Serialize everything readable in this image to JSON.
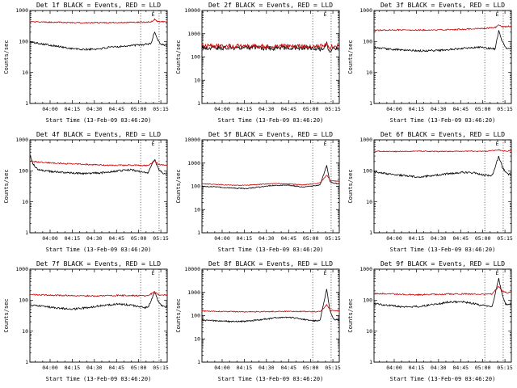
{
  "figure": {
    "xlabel": "Start Time (13-Feb-09 03:46:20)",
    "ylabel": "Counts/sec",
    "xrange_minutes": [
      0,
      93
    ],
    "xticks": [
      {
        "t": 13.67,
        "label": "04:00"
      },
      {
        "t": 28.67,
        "label": "04:15"
      },
      {
        "t": 43.67,
        "label": "04:30"
      },
      {
        "t": 58.67,
        "label": "04:45"
      },
      {
        "t": 73.67,
        "label": "05:00"
      },
      {
        "t": 88.67,
        "label": "05:15"
      }
    ],
    "event_marker": {
      "label": "E",
      "t": 83.5,
      "lines_t": [
        75.0,
        87.5
      ]
    },
    "legend": {
      "black_series": "Events",
      "red_series": "LLD"
    },
    "colors": {
      "events": "#000000",
      "lld": "#cc0000"
    }
  },
  "chart_data": [
    {
      "type": "line",
      "title": "Det 1f BLACK = Events, RED = LLD",
      "ylog": true,
      "ylim": [
        1,
        1000
      ],
      "series": [
        {
          "name": "Events",
          "color": "#000000",
          "noise": 0.07,
          "seed": 101,
          "points": [
            [
              0,
              95
            ],
            [
              8,
              85
            ],
            [
              15,
              75
            ],
            [
              25,
              62
            ],
            [
              35,
              55
            ],
            [
              45,
              57
            ],
            [
              55,
              65
            ],
            [
              65,
              72
            ],
            [
              75,
              78
            ],
            [
              82,
              85
            ],
            [
              84.5,
              210
            ],
            [
              86.5,
              115
            ],
            [
              89,
              80
            ],
            [
              93,
              75
            ]
          ]
        },
        {
          "name": "LLD",
          "color": "#cc0000",
          "noise": 0.045,
          "seed": 102,
          "points": [
            [
              0,
              430
            ],
            [
              20,
              415
            ],
            [
              40,
              400
            ],
            [
              60,
              410
            ],
            [
              75,
              420
            ],
            [
              82,
              430
            ],
            [
              84.5,
              520
            ],
            [
              86.5,
              440
            ],
            [
              93,
              430
            ]
          ]
        }
      ]
    },
    {
      "type": "line",
      "title": "Det 2f BLACK = Events, RED = LLD",
      "ylog": true,
      "ylim": [
        1,
        10000
      ],
      "series": [
        {
          "name": "Events",
          "color": "#000000",
          "noise": 0.22,
          "seed": 103,
          "points": [
            [
              0,
              255
            ],
            [
              15,
              245
            ],
            [
              30,
              255
            ],
            [
              45,
              235
            ],
            [
              60,
              255
            ],
            [
              70,
              245
            ],
            [
              78,
              230
            ],
            [
              82,
              220
            ],
            [
              84.5,
              390
            ],
            [
              86.5,
              140
            ],
            [
              89,
              250
            ],
            [
              93,
              235
            ]
          ]
        },
        {
          "name": "LLD",
          "color": "#cc0000",
          "noise": 0.2,
          "seed": 104,
          "points": [
            [
              0,
              300
            ],
            [
              15,
              290
            ],
            [
              30,
              300
            ],
            [
              45,
              285
            ],
            [
              60,
              300
            ],
            [
              70,
              290
            ],
            [
              78,
              285
            ],
            [
              84.5,
              330
            ],
            [
              86.5,
              240
            ],
            [
              89,
              300
            ],
            [
              93,
              290
            ]
          ]
        }
      ]
    },
    {
      "type": "line",
      "title": "Det 3f BLACK = Events, RED = LLD",
      "ylog": true,
      "ylim": [
        1,
        1000
      ],
      "series": [
        {
          "name": "Events",
          "color": "#000000",
          "noise": 0.07,
          "seed": 105,
          "points": [
            [
              0,
              62
            ],
            [
              15,
              55
            ],
            [
              30,
              50
            ],
            [
              45,
              52
            ],
            [
              60,
              60
            ],
            [
              70,
              66
            ],
            [
              78,
              60
            ],
            [
              82,
              58
            ],
            [
              84.5,
              230
            ],
            [
              86.5,
              105
            ],
            [
              89,
              63
            ],
            [
              93,
              60
            ]
          ]
        },
        {
          "name": "LLD",
          "color": "#cc0000",
          "noise": 0.05,
          "seed": 106,
          "points": [
            [
              0,
              230
            ],
            [
              20,
              238
            ],
            [
              40,
              232
            ],
            [
              60,
              248
            ],
            [
              75,
              265
            ],
            [
              82,
              285
            ],
            [
              84.5,
              330
            ],
            [
              87,
              300
            ],
            [
              93,
              310
            ]
          ]
        }
      ]
    },
    {
      "type": "line",
      "title": "Det 4f BLACK = Events, RED = LLD",
      "ylog": true,
      "ylim": [
        1,
        1000
      ],
      "series": [
        {
          "name": "Events",
          "color": "#000000",
          "noise": 0.07,
          "seed": 107,
          "points": [
            [
              0,
              330
            ],
            [
              2,
              170
            ],
            [
              5,
              115
            ],
            [
              10,
              100
            ],
            [
              20,
              90
            ],
            [
              30,
              84
            ],
            [
              40,
              82
            ],
            [
              50,
              88
            ],
            [
              60,
              100
            ],
            [
              68,
              108
            ],
            [
              75,
              95
            ],
            [
              80,
              87
            ],
            [
              84.5,
              235
            ],
            [
              87,
              115
            ],
            [
              90,
              84
            ],
            [
              93,
              80
            ]
          ]
        },
        {
          "name": "LLD",
          "color": "#cc0000",
          "noise": 0.05,
          "seed": 108,
          "points": [
            [
              0,
              205
            ],
            [
              10,
              185
            ],
            [
              25,
              170
            ],
            [
              40,
              160
            ],
            [
              55,
              150
            ],
            [
              70,
              153
            ],
            [
              80,
              148
            ],
            [
              84.5,
              215
            ],
            [
              87,
              160
            ],
            [
              93,
              155
            ]
          ]
        }
      ]
    },
    {
      "type": "line",
      "title": "Det 5f BLACK = Events, RED = LLD",
      "ylog": true,
      "ylim": [
        1,
        10000
      ],
      "series": [
        {
          "name": "Events",
          "color": "#000000",
          "noise": 0.05,
          "seed": 109,
          "points": [
            [
              0,
              100
            ],
            [
              10,
              94
            ],
            [
              20,
              85
            ],
            [
              30,
              80
            ],
            [
              40,
              95
            ],
            [
              50,
              112
            ],
            [
              60,
              110
            ],
            [
              68,
              94
            ],
            [
              75,
              104
            ],
            [
              80,
              115
            ],
            [
              84.5,
              800
            ],
            [
              86.5,
              170
            ],
            [
              89,
              135
            ],
            [
              93,
              128
            ]
          ]
        },
        {
          "name": "LLD",
          "color": "#cc0000",
          "noise": 0.04,
          "seed": 110,
          "points": [
            [
              0,
              128
            ],
            [
              10,
              120
            ],
            [
              20,
              113
            ],
            [
              30,
              110
            ],
            [
              40,
              122
            ],
            [
              50,
              132
            ],
            [
              60,
              126
            ],
            [
              68,
              114
            ],
            [
              75,
              128
            ],
            [
              80,
              140
            ],
            [
              84.5,
              300
            ],
            [
              87,
              175
            ],
            [
              93,
              165
            ]
          ]
        }
      ]
    },
    {
      "type": "line",
      "title": "Det 6f BLACK = Events, RED = LLD",
      "ylog": true,
      "ylim": [
        1,
        1000
      ],
      "series": [
        {
          "name": "Events",
          "color": "#000000",
          "noise": 0.07,
          "seed": 111,
          "points": [
            [
              0,
              92
            ],
            [
              10,
              80
            ],
            [
              20,
              70
            ],
            [
              30,
              64
            ],
            [
              40,
              70
            ],
            [
              50,
              80
            ],
            [
              60,
              90
            ],
            [
              68,
              85
            ],
            [
              75,
              72
            ],
            [
              80,
              69
            ],
            [
              84.5,
              300
            ],
            [
              87,
              125
            ],
            [
              90,
              80
            ],
            [
              93,
              76
            ]
          ]
        },
        {
          "name": "LLD",
          "color": "#cc0000",
          "noise": 0.035,
          "seed": 112,
          "points": [
            [
              0,
              430
            ],
            [
              15,
              420
            ],
            [
              30,
              432
            ],
            [
              45,
              420
            ],
            [
              60,
              430
            ],
            [
              75,
              424
            ],
            [
              84.5,
              475
            ],
            [
              88,
              432
            ],
            [
              93,
              440
            ]
          ]
        }
      ]
    },
    {
      "type": "line",
      "title": "Det 7f BLACK = Events, RED = LLD",
      "ylog": true,
      "ylim": [
        1,
        1000
      ],
      "series": [
        {
          "name": "Events",
          "color": "#000000",
          "noise": 0.07,
          "seed": 113,
          "points": [
            [
              0,
              70
            ],
            [
              10,
              62
            ],
            [
              20,
              55
            ],
            [
              30,
              52
            ],
            [
              40,
              58
            ],
            [
              50,
              68
            ],
            [
              60,
              75
            ],
            [
              68,
              70
            ],
            [
              75,
              60
            ],
            [
              80,
              57
            ],
            [
              84.5,
              185
            ],
            [
              87,
              92
            ],
            [
              90,
              62
            ],
            [
              93,
              60
            ]
          ]
        },
        {
          "name": "LLD",
          "color": "#cc0000",
          "noise": 0.05,
          "seed": 114,
          "points": [
            [
              0,
              150
            ],
            [
              15,
              145
            ],
            [
              30,
              140
            ],
            [
              45,
              137
            ],
            [
              60,
              142
            ],
            [
              75,
              140
            ],
            [
              80,
              138
            ],
            [
              84.5,
              188
            ],
            [
              87,
              150
            ],
            [
              93,
              146
            ]
          ]
        }
      ]
    },
    {
      "type": "line",
      "title": "Det 8f BLACK = Events, RED = LLD",
      "ylog": true,
      "ylim": [
        1,
        10000
      ],
      "series": [
        {
          "name": "Events",
          "color": "#000000",
          "noise": 0.07,
          "seed": 115,
          "points": [
            [
              0,
              64
            ],
            [
              10,
              60
            ],
            [
              20,
              55
            ],
            [
              30,
              58
            ],
            [
              40,
              68
            ],
            [
              50,
              80
            ],
            [
              58,
              86
            ],
            [
              66,
              75
            ],
            [
              73,
              62
            ],
            [
              80,
              60
            ],
            [
              84.5,
              1500
            ],
            [
              86.5,
              180
            ],
            [
              89,
              70
            ],
            [
              93,
              66
            ]
          ]
        },
        {
          "name": "LLD",
          "color": "#cc0000",
          "noise": 0.05,
          "seed": 116,
          "points": [
            [
              0,
              158
            ],
            [
              15,
              150
            ],
            [
              30,
              146
            ],
            [
              45,
              150
            ],
            [
              60,
              154
            ],
            [
              75,
              150
            ],
            [
              80,
              148
            ],
            [
              84.5,
              290
            ],
            [
              87,
              170
            ],
            [
              93,
              162
            ]
          ]
        }
      ]
    },
    {
      "type": "line",
      "title": "Det 9f BLACK = Events, RED = LLD",
      "ylog": true,
      "ylim": [
        1,
        1000
      ],
      "series": [
        {
          "name": "Events",
          "color": "#000000",
          "noise": 0.07,
          "seed": 117,
          "points": [
            [
              0,
              76
            ],
            [
              10,
              68
            ],
            [
              20,
              60
            ],
            [
              30,
              62
            ],
            [
              40,
              72
            ],
            [
              50,
              86
            ],
            [
              58,
              90
            ],
            [
              66,
              80
            ],
            [
              73,
              68
            ],
            [
              80,
              64
            ],
            [
              84.5,
              500
            ],
            [
              86.5,
              170
            ],
            [
              89,
              76
            ],
            [
              93,
              70
            ]
          ]
        },
        {
          "name": "LLD",
          "color": "#cc0000",
          "noise": 0.05,
          "seed": 118,
          "points": [
            [
              0,
              165
            ],
            [
              15,
              157
            ],
            [
              30,
              150
            ],
            [
              45,
              155
            ],
            [
              60,
              160
            ],
            [
              72,
              154
            ],
            [
              80,
              157
            ],
            [
              84.5,
              280
            ],
            [
              87,
              190
            ],
            [
              91,
              174
            ],
            [
              93,
              180
            ]
          ]
        }
      ]
    }
  ]
}
